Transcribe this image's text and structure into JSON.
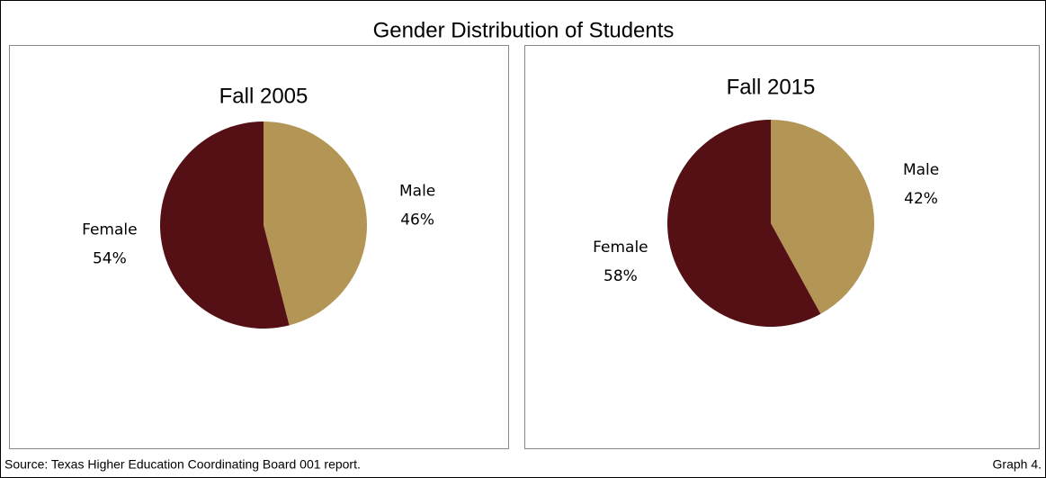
{
  "title": "Gender Distribution of Students",
  "chart_data": [
    {
      "type": "pie",
      "title": "Fall 2005",
      "categories": [
        "Male",
        "Female"
      ],
      "values": [
        46,
        54
      ],
      "value_labels": [
        "46%",
        "54%"
      ],
      "colors": [
        "#b39656",
        "#541015"
      ]
    },
    {
      "type": "pie",
      "title": "Fall 2015",
      "categories": [
        "Male",
        "Female"
      ],
      "values": [
        42,
        58
      ],
      "value_labels": [
        "42%",
        "58%"
      ],
      "colors": [
        "#b39656",
        "#541015"
      ]
    }
  ],
  "source": "Source: Texas Higher Education Coordinating Board 001 report.",
  "graph_label": "Graph 4."
}
